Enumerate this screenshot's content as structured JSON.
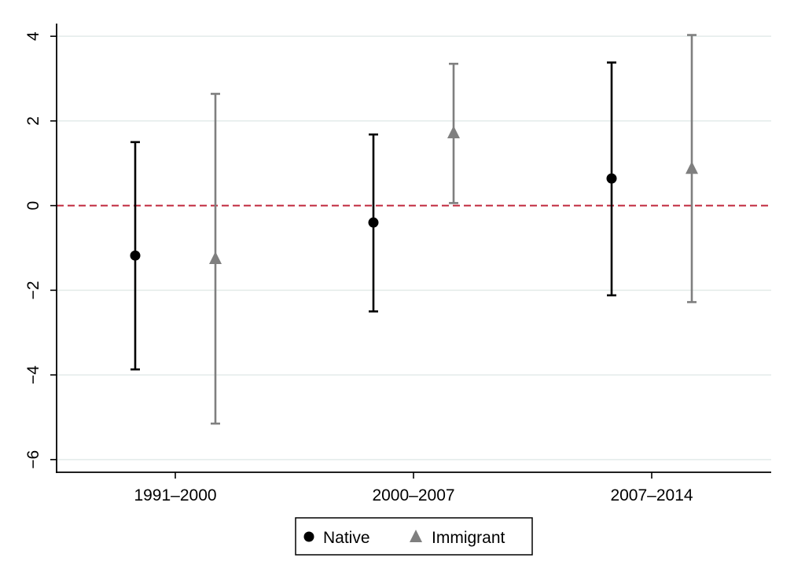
{
  "chart_data": {
    "type": "scatter",
    "categories": [
      "1991–2000",
      "2000–2007",
      "2007–2014"
    ],
    "y_ticks": [
      4,
      2,
      0,
      -2,
      -4,
      -6
    ],
    "y_tick_labels": [
      "4",
      "2",
      "0",
      "−2",
      "−4",
      "−6"
    ],
    "ylim": [
      -6.3,
      4.3
    ],
    "grid": true,
    "reference_line": {
      "y": 0,
      "style": "dashed",
      "color": "#c0283c"
    },
    "legend": {
      "placement": "bottom"
    },
    "series": [
      {
        "name": "Native",
        "marker": "circle",
        "color": "#000000",
        "values": [
          -1.18,
          -0.4,
          0.64
        ],
        "lower": [
          -3.87,
          -2.5,
          -2.12
        ],
        "upper": [
          1.5,
          1.68,
          3.38
        ]
      },
      {
        "name": "Immigrant",
        "marker": "triangle",
        "color": "#7f7f7f",
        "values": [
          -1.25,
          1.72,
          0.88
        ],
        "lower": [
          -5.15,
          0.06,
          -2.28
        ],
        "upper": [
          2.64,
          3.35,
          4.03
        ]
      }
    ],
    "title": "",
    "xlabel": "",
    "ylabel": ""
  }
}
